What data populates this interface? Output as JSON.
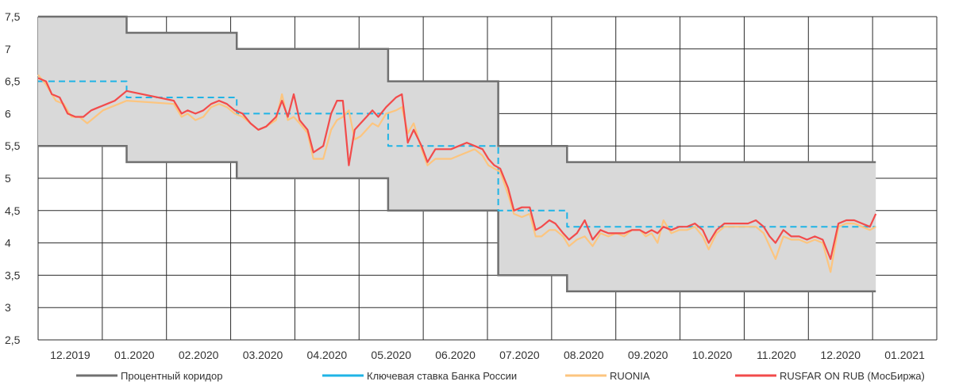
{
  "chart_data": {
    "type": "line",
    "title": "",
    "xlabel": "",
    "ylabel": "",
    "ylim": [
      2.5,
      7.5
    ],
    "yticks": [
      7.5,
      7,
      6.5,
      6,
      5.5,
      5,
      4.5,
      4,
      3.5,
      3,
      2.5
    ],
    "ytick_labels": [
      "7,5",
      "7",
      "6,5",
      "6",
      "5,5",
      "5",
      "4,5",
      "4",
      "3,5",
      "3",
      "2,5"
    ],
    "xlim": [
      "2019-11-01",
      "2021-01-31"
    ],
    "xtick_labels": [
      "12.2019",
      "01.2020",
      "02.2020",
      "03.2020",
      "04.2020",
      "05.2020",
      "06.2020",
      "07.2020",
      "08.2020",
      "09.2020",
      "10.2020",
      "11.2020",
      "12.2020",
      "01.2021"
    ],
    "grid": true,
    "legend_position": "bottom",
    "corridor": {
      "name": "Процентный коридор",
      "color": "#707070",
      "fill": "#d9d9d9",
      "upper": [
        [
          "2019-11-01",
          7.5
        ],
        [
          "2019-12-16",
          7.5
        ],
        [
          "2019-12-16",
          7.25
        ],
        [
          "2020-02-10",
          7.25
        ],
        [
          "2020-02-10",
          7.0
        ],
        [
          "2020-04-27",
          7.0
        ],
        [
          "2020-04-27",
          6.5
        ],
        [
          "2020-06-22",
          6.5
        ],
        [
          "2020-06-22",
          5.5
        ],
        [
          "2020-07-27",
          5.5
        ],
        [
          "2020-07-27",
          5.25
        ],
        [
          "2020-12-31",
          5.25
        ]
      ],
      "lower": [
        [
          "2019-11-01",
          5.5
        ],
        [
          "2019-12-16",
          5.5
        ],
        [
          "2019-12-16",
          5.25
        ],
        [
          "2020-02-10",
          5.25
        ],
        [
          "2020-02-10",
          5.0
        ],
        [
          "2020-04-27",
          5.0
        ],
        [
          "2020-04-27",
          4.5
        ],
        [
          "2020-06-22",
          4.5
        ],
        [
          "2020-06-22",
          3.5
        ],
        [
          "2020-07-27",
          3.5
        ],
        [
          "2020-07-27",
          3.25
        ],
        [
          "2020-12-31",
          3.25
        ]
      ]
    },
    "series": [
      {
        "name": "Ключевая ставка Банка России",
        "color": "#1fb4e6",
        "dashed": true,
        "points": [
          [
            "2019-11-01",
            6.5
          ],
          [
            "2019-12-16",
            6.5
          ],
          [
            "2019-12-16",
            6.25
          ],
          [
            "2020-02-10",
            6.25
          ],
          [
            "2020-02-10",
            6.0
          ],
          [
            "2020-04-27",
            6.0
          ],
          [
            "2020-04-27",
            5.5
          ],
          [
            "2020-06-22",
            5.5
          ],
          [
            "2020-06-22",
            4.5
          ],
          [
            "2020-07-27",
            4.5
          ],
          [
            "2020-07-27",
            4.25
          ],
          [
            "2020-12-31",
            4.25
          ]
        ]
      },
      {
        "name": "RUONIA",
        "color": "#fcc57f",
        "dashed": false,
        "points": [
          [
            "2019-11-01",
            6.6
          ],
          [
            "2019-11-05",
            6.45
          ],
          [
            "2019-11-10",
            6.2
          ],
          [
            "2019-11-14",
            6.15
          ],
          [
            "2019-11-18",
            5.95
          ],
          [
            "2019-11-22",
            5.95
          ],
          [
            "2019-11-26",
            5.85
          ],
          [
            "2019-11-30",
            5.95
          ],
          [
            "2019-12-04",
            6.05
          ],
          [
            "2019-12-08",
            6.1
          ],
          [
            "2019-12-12",
            6.15
          ],
          [
            "2019-12-16",
            6.2
          ],
          [
            "2020-01-09",
            6.15
          ],
          [
            "2020-01-13",
            5.95
          ],
          [
            "2020-01-16",
            6.0
          ],
          [
            "2020-01-20",
            5.9
          ],
          [
            "2020-01-24",
            5.95
          ],
          [
            "2020-01-28",
            6.1
          ],
          [
            "2020-02-01",
            6.15
          ],
          [
            "2020-02-05",
            6.1
          ],
          [
            "2020-02-09",
            6.0
          ],
          [
            "2020-02-13",
            5.95
          ],
          [
            "2020-02-17",
            5.85
          ],
          [
            "2020-02-21",
            5.75
          ],
          [
            "2020-02-25",
            5.8
          ],
          [
            "2020-03-01",
            5.9
          ],
          [
            "2020-03-04",
            6.3
          ],
          [
            "2020-03-07",
            5.9
          ],
          [
            "2020-03-10",
            5.95
          ],
          [
            "2020-03-13",
            5.85
          ],
          [
            "2020-03-17",
            5.7
          ],
          [
            "2020-03-20",
            5.3
          ],
          [
            "2020-03-25",
            5.3
          ],
          [
            "2020-03-29",
            5.75
          ],
          [
            "2020-04-01",
            5.9
          ],
          [
            "2020-04-04",
            5.95
          ],
          [
            "2020-04-07",
            6.05
          ],
          [
            "2020-04-10",
            5.6
          ],
          [
            "2020-04-13",
            5.65
          ],
          [
            "2020-04-16",
            5.75
          ],
          [
            "2020-04-19",
            5.85
          ],
          [
            "2020-04-22",
            5.8
          ],
          [
            "2020-04-26",
            6.0
          ],
          [
            "2020-05-01",
            6.05
          ],
          [
            "2020-05-04",
            6.1
          ],
          [
            "2020-05-07",
            5.7
          ],
          [
            "2020-05-10",
            5.85
          ],
          [
            "2020-05-14",
            5.45
          ],
          [
            "2020-05-17",
            5.2
          ],
          [
            "2020-05-21",
            5.3
          ],
          [
            "2020-05-25",
            5.3
          ],
          [
            "2020-05-29",
            5.3
          ],
          [
            "2020-06-02",
            5.35
          ],
          [
            "2020-06-06",
            5.4
          ],
          [
            "2020-06-10",
            5.45
          ],
          [
            "2020-06-14",
            5.35
          ],
          [
            "2020-06-17",
            5.2
          ],
          [
            "2020-06-20",
            5.15
          ],
          [
            "2020-06-23",
            5.1
          ],
          [
            "2020-06-27",
            4.75
          ],
          [
            "2020-06-30",
            4.45
          ],
          [
            "2020-07-04",
            4.4
          ],
          [
            "2020-07-08",
            4.45
          ],
          [
            "2020-07-11",
            4.1
          ],
          [
            "2020-07-14",
            4.1
          ],
          [
            "2020-07-18",
            4.2
          ],
          [
            "2020-07-21",
            4.2
          ],
          [
            "2020-07-25",
            4.1
          ],
          [
            "2020-07-28",
            3.95
          ],
          [
            "2020-08-01",
            4.05
          ],
          [
            "2020-08-05",
            4.1
          ],
          [
            "2020-08-09",
            3.95
          ],
          [
            "2020-08-13",
            4.15
          ],
          [
            "2020-08-17",
            4.1
          ],
          [
            "2020-08-21",
            4.15
          ],
          [
            "2020-08-25",
            4.1
          ],
          [
            "2020-08-29",
            4.2
          ],
          [
            "2020-09-02",
            4.2
          ],
          [
            "2020-09-05",
            4.1
          ],
          [
            "2020-09-08",
            4.15
          ],
          [
            "2020-09-11",
            4.0
          ],
          [
            "2020-09-14",
            4.35
          ],
          [
            "2020-09-18",
            4.15
          ],
          [
            "2020-09-22",
            4.2
          ],
          [
            "2020-09-26",
            4.2
          ],
          [
            "2020-09-30",
            4.25
          ],
          [
            "2020-10-04",
            4.1
          ],
          [
            "2020-10-07",
            3.9
          ],
          [
            "2020-10-11",
            4.15
          ],
          [
            "2020-10-15",
            4.25
          ],
          [
            "2020-10-19",
            4.25
          ],
          [
            "2020-10-23",
            4.25
          ],
          [
            "2020-10-27",
            4.25
          ],
          [
            "2020-10-31",
            4.25
          ],
          [
            "2020-11-04",
            4.15
          ],
          [
            "2020-11-07",
            3.95
          ],
          [
            "2020-11-10",
            3.75
          ],
          [
            "2020-11-14",
            4.1
          ],
          [
            "2020-11-18",
            4.05
          ],
          [
            "2020-11-22",
            4.05
          ],
          [
            "2020-11-26",
            4.0
          ],
          [
            "2020-11-30",
            4.05
          ],
          [
            "2020-12-04",
            4.0
          ],
          [
            "2020-12-08",
            3.55
          ],
          [
            "2020-12-12",
            4.25
          ],
          [
            "2020-12-16",
            4.3
          ],
          [
            "2020-12-20",
            4.3
          ],
          [
            "2020-12-24",
            4.25
          ],
          [
            "2020-12-28",
            4.2
          ],
          [
            "2020-12-31",
            4.25
          ]
        ]
      },
      {
        "name": "RUSFAR ON RUB (МосБиржа)",
        "color": "#f24b4b",
        "dashed": false,
        "points": [
          [
            "2019-11-01",
            6.55
          ],
          [
            "2019-11-05",
            6.5
          ],
          [
            "2019-11-08",
            6.3
          ],
          [
            "2019-11-12",
            6.25
          ],
          [
            "2019-11-16",
            6.0
          ],
          [
            "2019-11-20",
            5.95
          ],
          [
            "2019-11-24",
            5.95
          ],
          [
            "2019-11-28",
            6.05
          ],
          [
            "2019-12-02",
            6.1
          ],
          [
            "2019-12-06",
            6.15
          ],
          [
            "2019-12-10",
            6.2
          ],
          [
            "2019-12-16",
            6.35
          ],
          [
            "2020-01-09",
            6.2
          ],
          [
            "2020-01-13",
            6.0
          ],
          [
            "2020-01-16",
            6.05
          ],
          [
            "2020-01-20",
            6.0
          ],
          [
            "2020-01-24",
            6.05
          ],
          [
            "2020-01-28",
            6.15
          ],
          [
            "2020-02-01",
            6.2
          ],
          [
            "2020-02-05",
            6.15
          ],
          [
            "2020-02-09",
            6.05
          ],
          [
            "2020-02-13",
            6.0
          ],
          [
            "2020-02-17",
            5.85
          ],
          [
            "2020-02-21",
            5.75
          ],
          [
            "2020-02-25",
            5.8
          ],
          [
            "2020-03-01",
            5.95
          ],
          [
            "2020-03-04",
            6.2
          ],
          [
            "2020-03-07",
            5.95
          ],
          [
            "2020-03-10",
            6.3
          ],
          [
            "2020-03-13",
            5.9
          ],
          [
            "2020-03-17",
            5.75
          ],
          [
            "2020-03-20",
            5.4
          ],
          [
            "2020-03-25",
            5.5
          ],
          [
            "2020-03-29",
            6.0
          ],
          [
            "2020-04-01",
            6.2
          ],
          [
            "2020-04-04",
            6.2
          ],
          [
            "2020-04-07",
            5.2
          ],
          [
            "2020-04-10",
            5.75
          ],
          [
            "2020-04-13",
            5.85
          ],
          [
            "2020-04-16",
            5.95
          ],
          [
            "2020-04-19",
            6.05
          ],
          [
            "2020-04-22",
            5.95
          ],
          [
            "2020-04-26",
            6.1
          ],
          [
            "2020-05-01",
            6.25
          ],
          [
            "2020-05-04",
            6.3
          ],
          [
            "2020-05-07",
            5.55
          ],
          [
            "2020-05-10",
            5.75
          ],
          [
            "2020-05-14",
            5.5
          ],
          [
            "2020-05-17",
            5.25
          ],
          [
            "2020-05-21",
            5.45
          ],
          [
            "2020-05-25",
            5.45
          ],
          [
            "2020-05-29",
            5.45
          ],
          [
            "2020-06-02",
            5.5
          ],
          [
            "2020-06-06",
            5.55
          ],
          [
            "2020-06-10",
            5.5
          ],
          [
            "2020-06-14",
            5.45
          ],
          [
            "2020-06-17",
            5.3
          ],
          [
            "2020-06-20",
            5.2
          ],
          [
            "2020-06-23",
            5.15
          ],
          [
            "2020-06-27",
            4.85
          ],
          [
            "2020-06-30",
            4.5
          ],
          [
            "2020-07-04",
            4.55
          ],
          [
            "2020-07-08",
            4.55
          ],
          [
            "2020-07-11",
            4.2
          ],
          [
            "2020-07-14",
            4.25
          ],
          [
            "2020-07-18",
            4.35
          ],
          [
            "2020-07-21",
            4.3
          ],
          [
            "2020-07-25",
            4.15
          ],
          [
            "2020-07-28",
            4.05
          ],
          [
            "2020-08-01",
            4.15
          ],
          [
            "2020-08-05",
            4.35
          ],
          [
            "2020-08-09",
            4.05
          ],
          [
            "2020-08-13",
            4.2
          ],
          [
            "2020-08-17",
            4.15
          ],
          [
            "2020-08-21",
            4.15
          ],
          [
            "2020-08-25",
            4.15
          ],
          [
            "2020-08-29",
            4.2
          ],
          [
            "2020-09-02",
            4.2
          ],
          [
            "2020-09-05",
            4.15
          ],
          [
            "2020-09-08",
            4.2
          ],
          [
            "2020-09-11",
            4.15
          ],
          [
            "2020-09-14",
            4.25
          ],
          [
            "2020-09-18",
            4.2
          ],
          [
            "2020-09-22",
            4.25
          ],
          [
            "2020-09-26",
            4.25
          ],
          [
            "2020-09-30",
            4.3
          ],
          [
            "2020-10-04",
            4.2
          ],
          [
            "2020-10-07",
            4.0
          ],
          [
            "2020-10-11",
            4.2
          ],
          [
            "2020-10-15",
            4.3
          ],
          [
            "2020-10-19",
            4.3
          ],
          [
            "2020-10-23",
            4.3
          ],
          [
            "2020-10-27",
            4.3
          ],
          [
            "2020-10-31",
            4.35
          ],
          [
            "2020-11-04",
            4.25
          ],
          [
            "2020-11-07",
            4.1
          ],
          [
            "2020-11-10",
            4.0
          ],
          [
            "2020-11-14",
            4.2
          ],
          [
            "2020-11-18",
            4.1
          ],
          [
            "2020-11-22",
            4.1
          ],
          [
            "2020-11-26",
            4.05
          ],
          [
            "2020-11-30",
            4.1
          ],
          [
            "2020-12-04",
            4.05
          ],
          [
            "2020-12-08",
            3.75
          ],
          [
            "2020-12-12",
            4.3
          ],
          [
            "2020-12-16",
            4.35
          ],
          [
            "2020-12-20",
            4.35
          ],
          [
            "2020-12-24",
            4.3
          ],
          [
            "2020-12-28",
            4.25
          ],
          [
            "2020-12-31",
            4.45
          ]
        ]
      }
    ]
  }
}
